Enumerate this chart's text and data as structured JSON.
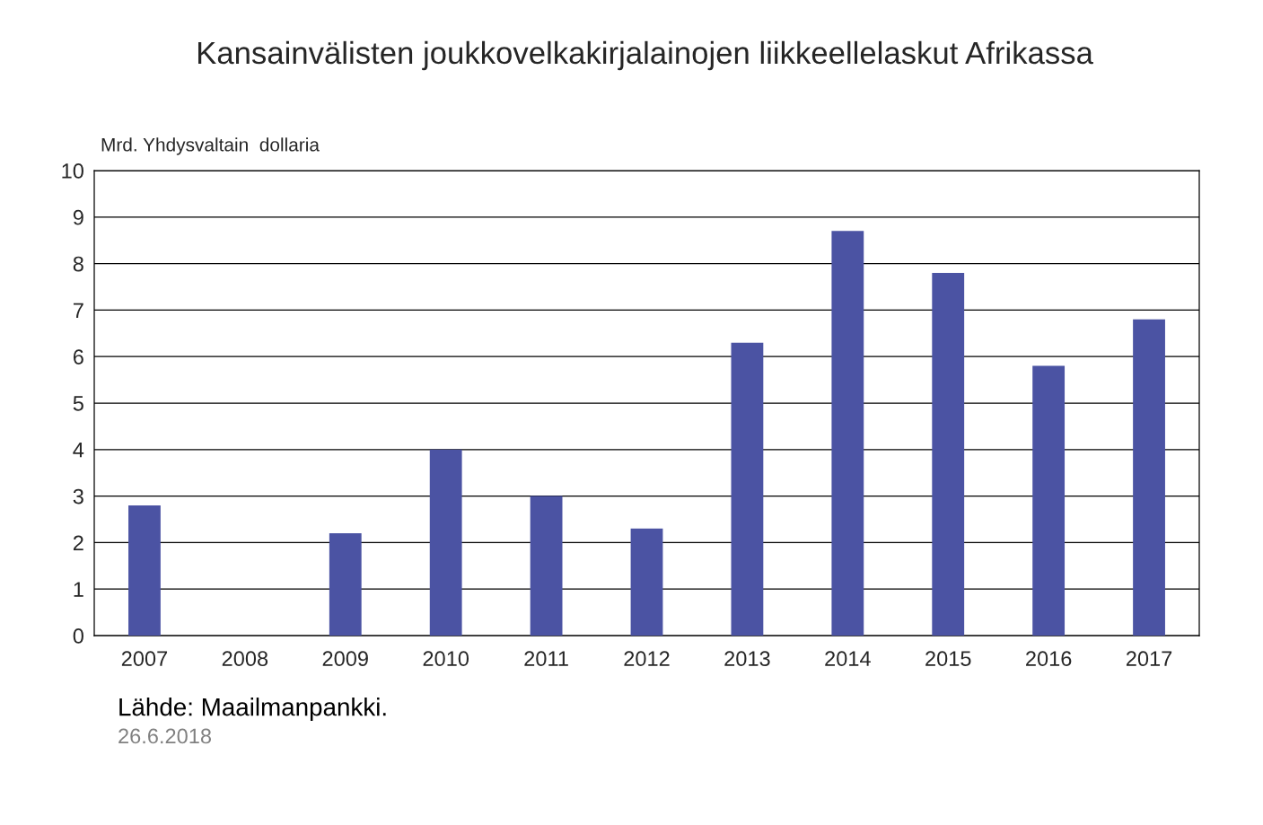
{
  "chart_data": {
    "type": "bar",
    "title": "Kansainvälisten joukkovelkakirjalainojen liikkeellelaskut Afrikassa",
    "ylabel": "Mrd. Yhdysvaltain  dollaria",
    "categories": [
      "2007",
      "2008",
      "2009",
      "2010",
      "2011",
      "2012",
      "2013",
      "2014",
      "2015",
      "2016",
      "2017"
    ],
    "values": [
      2.8,
      null,
      2.2,
      4.0,
      3.0,
      2.3,
      6.3,
      8.7,
      7.8,
      5.8,
      6.8
    ],
    "color": "#4b53a3",
    "ylim": [
      0,
      10
    ],
    "yticks": [
      0,
      1,
      2,
      3,
      4,
      5,
      6,
      7,
      8,
      9,
      10
    ],
    "grid": "y",
    "annotations": [
      "Lähde: Maailmanpankki.",
      "26.6.2018"
    ]
  }
}
